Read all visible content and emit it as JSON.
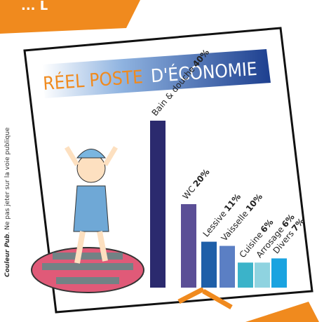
{
  "banner": "... L",
  "side_note": {
    "brand": "Couleur Pub",
    "text": ". Ne pas jeter sur la voie publique"
  },
  "chart_data": {
    "type": "bar",
    "title": {
      "highlight": "RÉEL POSTE",
      "rest": "D'ÉCONOMIE"
    },
    "categories": [
      "Bain & douche",
      "WC",
      "Lessive",
      "Vaisselle",
      "Cuisine",
      "Arrosage",
      "Divers"
    ],
    "values": [
      40,
      20,
      11,
      10,
      6,
      6,
      7
    ],
    "value_labels": [
      "40%",
      "20%",
      "11%",
      "10%",
      "6%",
      "6%",
      "7%"
    ],
    "colors": [
      "#2b2a6e",
      "#5b4f96",
      "#1e5fa8",
      "#5b7fc4",
      "#3bb3c9",
      "#8fd3e0",
      "#1aa3e0"
    ]
  }
}
